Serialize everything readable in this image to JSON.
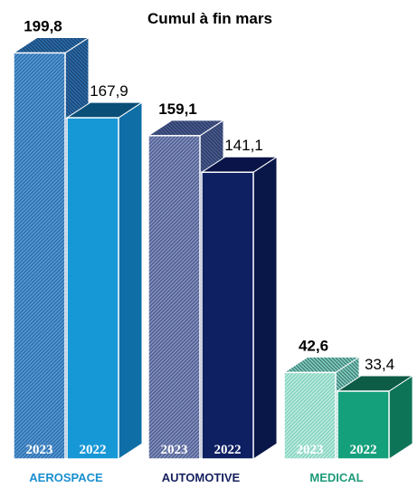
{
  "chart_data": {
    "type": "bar",
    "title": "Cumul à fin mars",
    "categories": [
      "AEROSPACE",
      "AUTOMOTIVE",
      "MEDICAL"
    ],
    "series": [
      {
        "name": "2023",
        "values": [
          199.8,
          159.1,
          42.6
        ]
      },
      {
        "name": "2022",
        "values": [
          167.9,
          141.1,
          33.4
        ]
      }
    ],
    "value_labels": [
      [
        "199,8",
        "167,9"
      ],
      [
        "159,1",
        "141,1"
      ],
      [
        "42,6",
        "33,4"
      ]
    ],
    "year_labels": [
      "2023",
      "2022"
    ],
    "colors": {
      "categories": [
        "#1a8fd0",
        "#16205e",
        "#1e9a7a"
      ],
      "2023_hatch": [
        "#2a6cab",
        "#4a5a90",
        "#7fd2bd"
      ],
      "2023_hatch_bg": [
        "#5b9bd5",
        "#8995bf",
        "#c3ece1"
      ],
      "2022_front": [
        "#1798d6",
        "#0e1f62",
        "#15a07c"
      ],
      "2022_side": [
        "#0f6ea6",
        "#091648",
        "#0e7458"
      ],
      "2022_top": [
        "#0a4f78",
        "#0a1448",
        "#0c5c46"
      ]
    },
    "ylim": [
      0,
      200
    ],
    "grid": false,
    "legend": "none",
    "xlabel": "",
    "ylabel": ""
  }
}
